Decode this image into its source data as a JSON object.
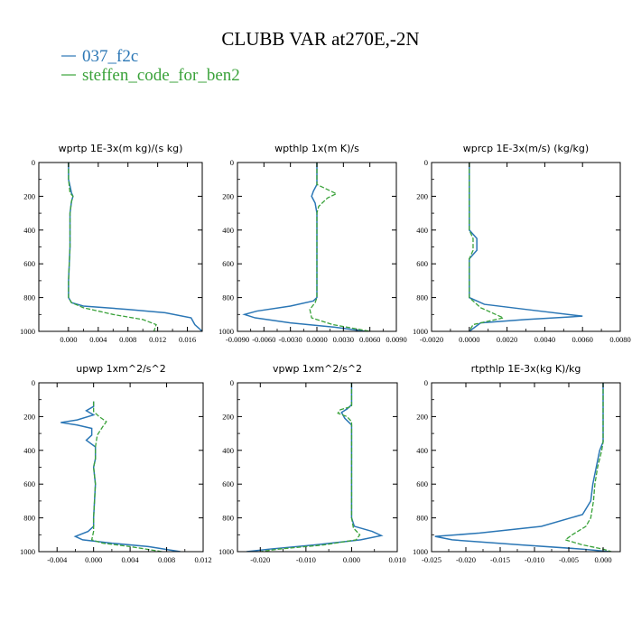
{
  "title": "CLUBB VAR at270E,-2N",
  "legend": [
    {
      "name": "037_f2c",
      "color": "#2a76b5",
      "dash": false
    },
    {
      "name": "steffen_code_for_ben2",
      "color": "#3aa23a",
      "dash": true
    }
  ],
  "chart_data": [
    {
      "type": "line",
      "title": "wprtp   1E-3x(m kg)/(s kg)",
      "xlim": [
        -0.004,
        0.018
      ],
      "ylim": [
        1000,
        0
      ],
      "xticks": [
        0.0,
        0.004,
        0.008,
        0.012,
        0.016
      ],
      "xtick_labels": [
        "0.000",
        "0.004",
        "0.008",
        "0.012",
        "0.016"
      ],
      "yticks": [
        0,
        200,
        400,
        600,
        800,
        1000
      ],
      "series": [
        {
          "name": "037_f2c",
          "points": [
            [
              0.0,
              0
            ],
            [
              0.0,
              100
            ],
            [
              0.0004,
              180
            ],
            [
              0.0006,
              200
            ],
            [
              0.0004,
              230
            ],
            [
              0.0002,
              300
            ],
            [
              0.0002,
              500
            ],
            [
              0.0,
              700
            ],
            [
              0.0,
              800
            ],
            [
              0.0004,
              830
            ],
            [
              0.002,
              850
            ],
            [
              0.008,
              870
            ],
            [
              0.013,
              890
            ],
            [
              0.0165,
              920
            ],
            [
              0.017,
              960
            ],
            [
              0.018,
              1000
            ]
          ]
        },
        {
          "name": "steffen_code_for_ben2",
          "points": [
            [
              0.0,
              0
            ],
            [
              0.0,
              100
            ],
            [
              0.0002,
              180
            ],
            [
              0.0006,
              200
            ],
            [
              0.0004,
              230
            ],
            [
              0.0002,
              300
            ],
            [
              0.0002,
              500
            ],
            [
              0.0,
              700
            ],
            [
              0.0,
              800
            ],
            [
              0.0004,
              830
            ],
            [
              0.002,
              860
            ],
            [
              0.006,
              900
            ],
            [
              0.01,
              930
            ],
            [
              0.0118,
              960
            ],
            [
              0.0115,
              1000
            ]
          ]
        }
      ]
    },
    {
      "type": "line",
      "title": "wpthlp   1x(m K)/s",
      "xlim": [
        -0.009,
        0.009
      ],
      "ylim": [
        1000,
        0
      ],
      "xticks": [
        -0.009,
        -0.006,
        -0.003,
        0.0,
        0.003,
        0.006,
        0.009
      ],
      "xtick_labels": [
        "-0.0090",
        "-0.0060",
        "-0.0030",
        "0.0000",
        "0.0030",
        "0.0060",
        "0.0090"
      ],
      "yticks": [
        0,
        200,
        400,
        600,
        800,
        1000
      ],
      "series": [
        {
          "name": "037_f2c",
          "points": [
            [
              0.0,
              0
            ],
            [
              0.0,
              130
            ],
            [
              -0.0004,
              170
            ],
            [
              -0.0006,
              200
            ],
            [
              -0.0002,
              240
            ],
            [
              0.0,
              300
            ],
            [
              0.0,
              800
            ],
            [
              -0.0004,
              820
            ],
            [
              -0.003,
              850
            ],
            [
              -0.0068,
              880
            ],
            [
              -0.0082,
              900
            ],
            [
              -0.007,
              920
            ],
            [
              -0.003,
              950
            ],
            [
              0.002,
              975
            ],
            [
              0.0055,
              1000
            ]
          ]
        },
        {
          "name": "steffen_code_for_ben2",
          "points": [
            [
              0.0,
              0
            ],
            [
              0.0,
              130
            ],
            [
              0.0008,
              150
            ],
            [
              0.0022,
              185
            ],
            [
              0.0012,
              210
            ],
            [
              0.0002,
              260
            ],
            [
              0.0,
              300
            ],
            [
              0.0,
              800
            ],
            [
              -0.0002,
              830
            ],
            [
              -0.0008,
              870
            ],
            [
              -0.0006,
              920
            ],
            [
              0.0018,
              960
            ],
            [
              0.006,
              1000
            ]
          ]
        }
      ]
    },
    {
      "type": "line",
      "title": "wprcp   1E-3x(m/s) (kg/kg)",
      "xlim": [
        -0.002,
        0.008
      ],
      "ylim": [
        1000,
        0
      ],
      "xticks": [
        -0.002,
        0.0,
        0.002,
        0.004,
        0.006,
        0.008
      ],
      "xtick_labels": [
        "-0.0020",
        "0.0000",
        "0.0020",
        "0.0040",
        "0.0060",
        "0.0080"
      ],
      "yticks": [
        0,
        200,
        400,
        600,
        800,
        1000
      ],
      "series": [
        {
          "name": "037_f2c",
          "points": [
            [
              0.0,
              0
            ],
            [
              0.0,
              400
            ],
            [
              0.0004,
              450
            ],
            [
              0.0004,
              520
            ],
            [
              0.0,
              570
            ],
            [
              0.0,
              800
            ],
            [
              0.0008,
              840
            ],
            [
              0.003,
              870
            ],
            [
              0.006,
              910
            ],
            [
              0.003,
              930
            ],
            [
              0.0006,
              950
            ],
            [
              0.0,
              1000
            ]
          ]
        },
        {
          "name": "steffen_code_for_ben2",
          "points": [
            [
              0.0,
              0
            ],
            [
              0.0,
              400
            ],
            [
              0.0002,
              450
            ],
            [
              0.0002,
              520
            ],
            [
              0.0,
              570
            ],
            [
              0.0,
              800
            ],
            [
              0.0006,
              860
            ],
            [
              0.0014,
              900
            ],
            [
              0.0018,
              920
            ],
            [
              0.001,
              940
            ],
            [
              0.0002,
              960
            ],
            [
              0.0,
              1000
            ]
          ]
        }
      ]
    },
    {
      "type": "line",
      "title": "upwp   1xm^2/s^2",
      "xlim": [
        -0.006,
        0.012
      ],
      "ylim": [
        1000,
        0
      ],
      "xticks": [
        -0.004,
        0.0,
        0.004,
        0.008,
        0.012
      ],
      "xtick_labels": [
        "-0.004",
        "0.000",
        "0.004",
        "0.008",
        "0.012"
      ],
      "yticks": [
        0,
        200,
        400,
        600,
        800,
        1000
      ],
      "series": [
        {
          "name": "037_f2c",
          "points": [
            [
              0.0,
              110
            ],
            [
              0.0,
              140
            ],
            [
              -0.0008,
              165
            ],
            [
              0.0,
              190
            ],
            [
              -0.0018,
              220
            ],
            [
              -0.0036,
              235
            ],
            [
              -0.0018,
              250
            ],
            [
              -0.0002,
              270
            ],
            [
              -0.0002,
              310
            ],
            [
              -0.0008,
              340
            ],
            [
              0.0002,
              380
            ],
            [
              0.0002,
              450
            ],
            [
              0.0,
              500
            ],
            [
              0.0002,
              600
            ],
            [
              0.0,
              800
            ],
            [
              0.0,
              850
            ],
            [
              -0.0006,
              880
            ],
            [
              -0.002,
              910
            ],
            [
              -0.0012,
              930
            ],
            [
              0.002,
              950
            ],
            [
              0.006,
              970
            ],
            [
              0.0095,
              1000
            ]
          ]
        },
        {
          "name": "steffen_code_for_ben2",
          "points": [
            [
              0.0,
              110
            ],
            [
              0.0,
              170
            ],
            [
              0.0006,
              200
            ],
            [
              0.0014,
              230
            ],
            [
              0.001,
              260
            ],
            [
              0.0004,
              310
            ],
            [
              0.0002,
              380
            ],
            [
              0.0002,
              450
            ],
            [
              0.0,
              500
            ],
            [
              0.0002,
              600
            ],
            [
              0.0,
              800
            ],
            [
              0.0,
              880
            ],
            [
              -0.0002,
              930
            ],
            [
              0.001,
              950
            ],
            [
              0.004,
              970
            ],
            [
              0.0075,
              1000
            ]
          ]
        }
      ]
    },
    {
      "type": "line",
      "title": "vpwp   1xm^2/s^2",
      "xlim": [
        -0.025,
        0.01
      ],
      "ylim": [
        1000,
        0
      ],
      "xticks": [
        -0.02,
        -0.01,
        0.0,
        0.01
      ],
      "xtick_labels": [
        "-0.020",
        "-0.010",
        "0.000",
        "0.010"
      ],
      "yticks": [
        0,
        200,
        400,
        600,
        800,
        1000
      ],
      "series": [
        {
          "name": "037_f2c",
          "points": [
            [
              0.0,
              0
            ],
            [
              0.0,
              130
            ],
            [
              -0.001,
              155
            ],
            [
              -0.0022,
              175
            ],
            [
              -0.0015,
              210
            ],
            [
              0.0,
              250
            ],
            [
              0.0,
              800
            ],
            [
              0.0006,
              850
            ],
            [
              0.0045,
              880
            ],
            [
              0.0065,
              905
            ],
            [
              0.002,
              930
            ],
            [
              -0.008,
              960
            ],
            [
              -0.018,
              985
            ],
            [
              -0.023,
              1000
            ]
          ]
        },
        {
          "name": "steffen_code_for_ben2",
          "points": [
            [
              0.0,
              0
            ],
            [
              0.0,
              140
            ],
            [
              -0.0025,
              160
            ],
            [
              -0.003,
              180
            ],
            [
              -0.001,
              200
            ],
            [
              0.0,
              230
            ],
            [
              0.0,
              800
            ],
            [
              0.0004,
              860
            ],
            [
              0.0018,
              900
            ],
            [
              0.001,
              930
            ],
            [
              -0.006,
              960
            ],
            [
              -0.016,
              985
            ],
            [
              -0.02,
              1000
            ]
          ]
        }
      ]
    },
    {
      "type": "line",
      "title": "rtpthlp   1E-3x(kg K)/kg",
      "xlim": [
        -0.025,
        0.0025
      ],
      "ylim": [
        1000,
        0
      ],
      "xticks": [
        -0.025,
        -0.02,
        -0.015,
        -0.01,
        -0.005,
        0.0
      ],
      "xtick_labels": [
        "-0.025",
        "-0.020",
        "-0.015",
        "-0.010",
        "-0.005",
        "0.000"
      ],
      "yticks": [
        0,
        200,
        400,
        600,
        800,
        1000
      ],
      "series": [
        {
          "name": "037_f2c",
          "points": [
            [
              0.0,
              0
            ],
            [
              0.0,
              350
            ],
            [
              -0.0005,
              400
            ],
            [
              -0.001,
              500
            ],
            [
              -0.0015,
              600
            ],
            [
              -0.0018,
              700
            ],
            [
              -0.003,
              780
            ],
            [
              -0.009,
              850
            ],
            [
              -0.018,
              890
            ],
            [
              -0.0245,
              910
            ],
            [
              -0.022,
              930
            ],
            [
              -0.012,
              960
            ],
            [
              -0.003,
              985
            ],
            [
              0.001,
              1000
            ]
          ]
        },
        {
          "name": "steffen_code_for_ben2",
          "points": [
            [
              0.0,
              0
            ],
            [
              0.0,
              350
            ],
            [
              -0.0002,
              400
            ],
            [
              -0.0008,
              500
            ],
            [
              -0.0012,
              600
            ],
            [
              -0.0014,
              700
            ],
            [
              -0.0018,
              800
            ],
            [
              -0.0025,
              850
            ],
            [
              -0.0045,
              900
            ],
            [
              -0.0055,
              930
            ],
            [
              -0.003,
              960
            ],
            [
              0.0,
              985
            ],
            [
              0.0012,
              1000
            ]
          ]
        }
      ]
    }
  ]
}
